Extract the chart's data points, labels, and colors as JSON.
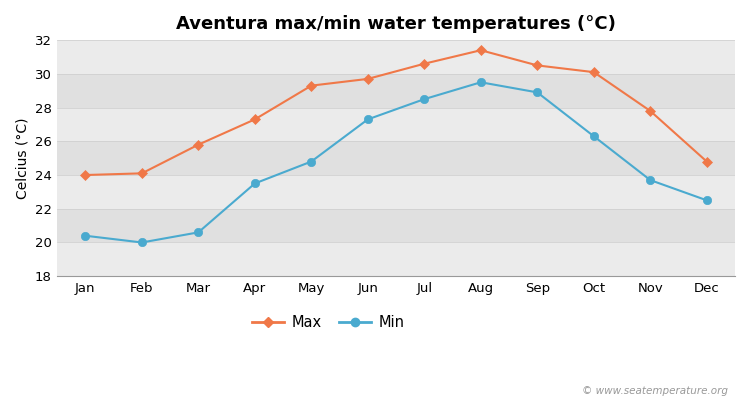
{
  "title": "Aventura max/min water temperatures (°C)",
  "ylabel": "Celcius (°C)",
  "months": [
    "Jan",
    "Feb",
    "Mar",
    "Apr",
    "May",
    "Jun",
    "Jul",
    "Aug",
    "Sep",
    "Oct",
    "Nov",
    "Dec"
  ],
  "max_values": [
    24.0,
    24.1,
    25.8,
    27.3,
    29.3,
    29.7,
    30.6,
    31.4,
    30.5,
    30.1,
    27.8,
    24.8
  ],
  "min_values": [
    20.4,
    20.0,
    20.6,
    23.5,
    24.8,
    27.3,
    28.5,
    29.5,
    28.9,
    26.3,
    23.7,
    22.5
  ],
  "max_color": "#f07848",
  "min_color": "#4aaacf",
  "ylim": [
    18,
    32
  ],
  "yticks": [
    18,
    20,
    22,
    24,
    26,
    28,
    30,
    32
  ],
  "band_colors": [
    "#ebebeb",
    "#e0e0e0"
  ],
  "grid_line_color": "#d8d8d8",
  "legend_labels": [
    "Max",
    "Min"
  ],
  "watermark": "© www.seatemperature.org",
  "title_fontsize": 13,
  "axis_label_fontsize": 10,
  "tick_fontsize": 9.5,
  "legend_fontsize": 10.5,
  "max_marker_size": 5,
  "min_marker_size": 6,
  "line_width": 1.5
}
